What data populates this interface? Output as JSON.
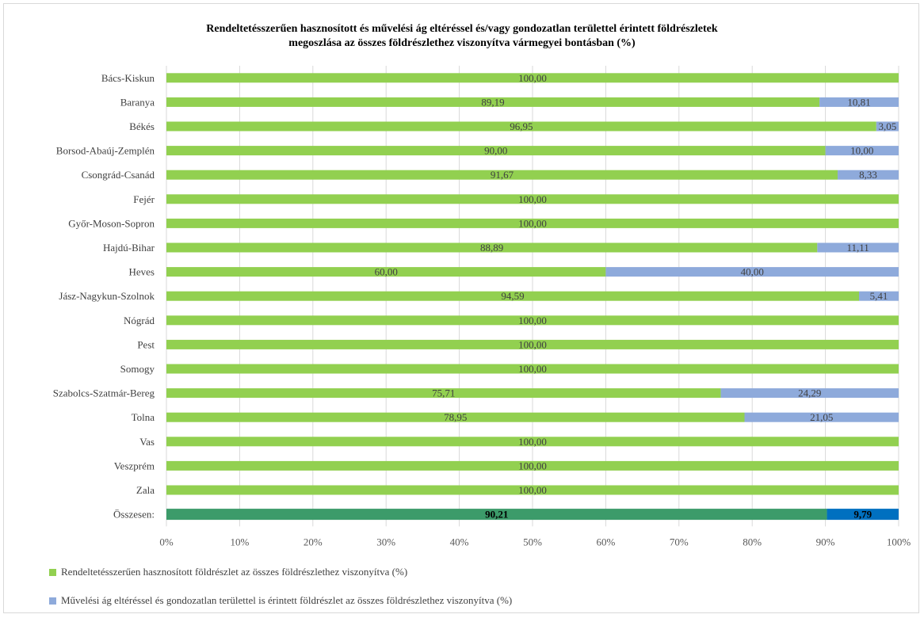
{
  "chart_data": {
    "type": "bar",
    "orientation": "horizontal",
    "stacked": true,
    "title_line1": "Rendeltetésszerűen hasznosított és művelési ág eltéréssel és/vagy gondozatlan területtel érintett földrészletek",
    "title_line2": "megoszlása az összes földrészlethez viszonyítva vármegyei bontásban (%)",
    "categories": [
      "Bács-Kiskun",
      "Baranya",
      "Békés",
      "Borsod-Abaúj-Zemplén",
      "Csongrád-Csanád",
      "Fejér",
      "Győr-Moson-Sopron",
      "Hajdú-Bihar",
      "Heves",
      "Jász-Nagykun-Szolnok",
      "Nógrád",
      "Pest",
      "Somogy",
      "Szabolcs-Szatmár-Bereg",
      "Tolna",
      "Vas",
      "Veszprém",
      "Zala",
      "Összesen:"
    ],
    "series": [
      {
        "name": "Rendeltetésszerűen hasznosított földrészlet az összes földrészlethez viszonyítva (%)",
        "color": "#92d050",
        "total_color": "#3c9b6a",
        "values": [
          100.0,
          89.19,
          96.95,
          90.0,
          91.67,
          100.0,
          100.0,
          88.89,
          60.0,
          94.59,
          100.0,
          100.0,
          100.0,
          75.71,
          78.95,
          100.0,
          100.0,
          100.0,
          90.21
        ],
        "labels": [
          "100,00",
          "89,19",
          "96,95",
          "90,00",
          "91,67",
          "100,00",
          "100,00",
          "88,89",
          "60,00",
          "94,59",
          "100,00",
          "100,00",
          "100,00",
          "75,71",
          "78,95",
          "100,00",
          "100,00",
          "100,00",
          "90,21"
        ]
      },
      {
        "name": "Művelési ág eltéréssel és gondozatlan területtel is érintett földrészlet az összes földrészlethez viszonyítva (%)",
        "color": "#8eaadb",
        "total_color": "#0070c0",
        "values": [
          0,
          10.81,
          3.05,
          10.0,
          8.33,
          0,
          0,
          11.11,
          40.0,
          5.41,
          0,
          0,
          0,
          24.29,
          21.05,
          0,
          0,
          0,
          9.79
        ],
        "labels": [
          "",
          "10,81",
          "3,05",
          "10,00",
          "8,33",
          "",
          "",
          "11,11",
          "40,00",
          "5,41",
          "",
          "",
          "",
          "24,29",
          "21,05",
          "",
          "",
          "",
          "9,79"
        ]
      }
    ],
    "xlim": [
      0,
      100
    ],
    "x_ticks": [
      "0%",
      "10%",
      "20%",
      "30%",
      "40%",
      "50%",
      "60%",
      "70%",
      "80%",
      "90%",
      "100%"
    ],
    "grid": true,
    "legend_position": "bottom"
  }
}
